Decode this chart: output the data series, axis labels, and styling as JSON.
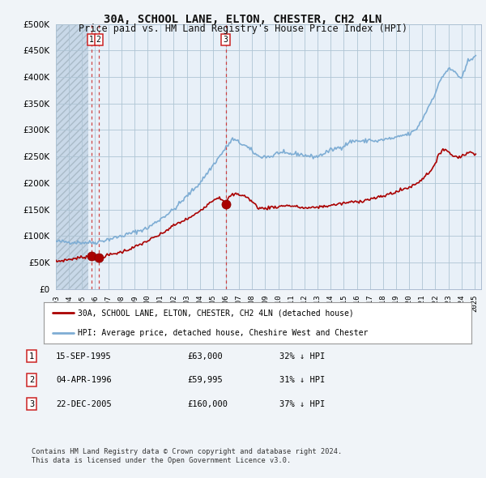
{
  "title": "30A, SCHOOL LANE, ELTON, CHESTER, CH2 4LN",
  "subtitle": "Price paid vs. HM Land Registry's House Price Index (HPI)",
  "legend_house": "30A, SCHOOL LANE, ELTON, CHESTER, CH2 4LN (detached house)",
  "legend_hpi": "HPI: Average price, detached house, Cheshire West and Chester",
  "footer1": "Contains HM Land Registry data © Crown copyright and database right 2024.",
  "footer2": "This data is licensed under the Open Government Licence v3.0.",
  "transactions": [
    {
      "id": 1,
      "date": "15-SEP-1995",
      "price": 63000,
      "pct": "32%",
      "year": 1995.71
    },
    {
      "id": 2,
      "date": "04-APR-1996",
      "price": 59995,
      "pct": "31%",
      "year": 1996.26
    },
    {
      "id": 3,
      "date": "22-DEC-2005",
      "price": 160000,
      "pct": "37%",
      "year": 2005.97
    }
  ],
  "ylim": [
    0,
    500000
  ],
  "yticks": [
    0,
    50000,
    100000,
    150000,
    200000,
    250000,
    300000,
    350000,
    400000,
    450000,
    500000
  ],
  "hpi_color": "#7eadd4",
  "price_color": "#aa0000",
  "dashed_line_color": "#cc3333",
  "bg_color": "#f0f4f8",
  "plot_bg_left": "#dde8f0",
  "plot_bg_right": "#e8f0f8",
  "hatch_boundary": 1995.5,
  "xmin": 1993.0,
  "xmax": 2025.5
}
